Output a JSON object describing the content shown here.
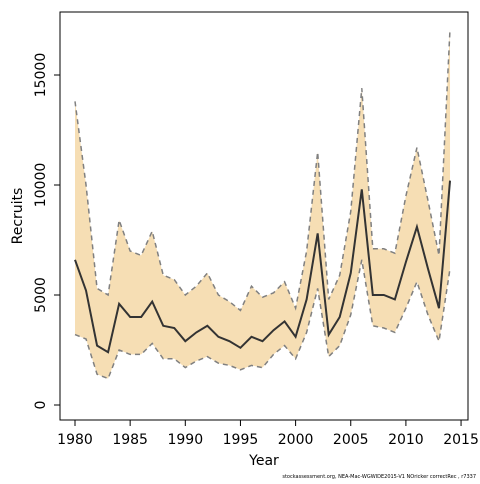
{
  "chart_data": {
    "type": "line",
    "xlabel": "Year",
    "ylabel": "Recruits",
    "footnote": "stockassessment.org, NEA-Mac-WGWIDE2015-V1  NOricker  correctRec , r7337",
    "x": [
      1980,
      1981,
      1982,
      1983,
      1984,
      1985,
      1986,
      1987,
      1988,
      1989,
      1990,
      1991,
      1992,
      1993,
      1994,
      1995,
      1996,
      1997,
      1998,
      1999,
      2000,
      2001,
      2002,
      2003,
      2004,
      2005,
      2006,
      2007,
      2008,
      2009,
      2010,
      2011,
      2012,
      2013,
      2014
    ],
    "values": [
      6600,
      5200,
      2700,
      2400,
      4600,
      4000,
      4000,
      4700,
      3600,
      3500,
      2900,
      3300,
      3600,
      3100,
      2900,
      2600,
      3100,
      2900,
      3400,
      3800,
      3100,
      4800,
      7800,
      3200,
      4000,
      6000,
      9800,
      5000,
      5000,
      4800,
      6500,
      8100,
      6200,
      4400,
      10200
    ],
    "upper": [
      13800,
      10000,
      5300,
      5000,
      8400,
      7000,
      6800,
      7900,
      5900,
      5700,
      5000,
      5400,
      6000,
      5000,
      4700,
      4300,
      5400,
      4900,
      5100,
      5600,
      4400,
      7000,
      11500,
      4800,
      5900,
      8800,
      14400,
      7100,
      7100,
      6900,
      9500,
      11700,
      9300,
      6800,
      17100
    ],
    "lower": [
      3200,
      3000,
      1400,
      1200,
      2500,
      2300,
      2300,
      2800,
      2100,
      2100,
      1700,
      2000,
      2200,
      1900,
      1800,
      1600,
      1800,
      1700,
      2300,
      2700,
      2100,
      3300,
      5300,
      2200,
      2700,
      4100,
      6600,
      3600,
      3500,
      3300,
      4400,
      5600,
      4100,
      2900,
      6200
    ],
    "color": "#333333",
    "band_color": "#f6deb4",
    "bound_color": "#808080",
    "xlim": [
      1978.64,
      2015.63
    ],
    "xticks": [
      1980,
      1985,
      1990,
      1995,
      2000,
      2005,
      2010,
      2015
    ],
    "ylim": [
      -682,
      17864
    ],
    "yticks": [
      0,
      5000,
      10000,
      15000
    ]
  }
}
